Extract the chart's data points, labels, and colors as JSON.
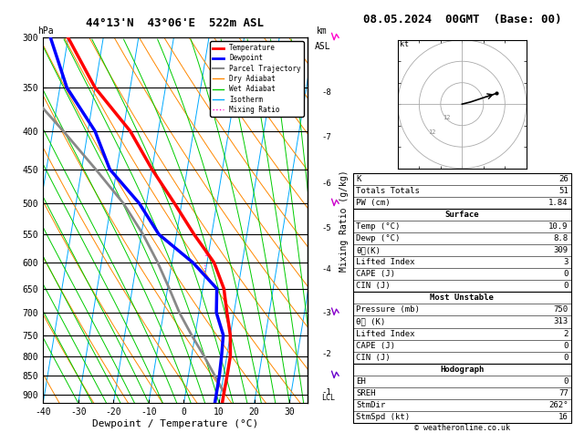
{
  "title_left": "44°13'N  43°06'E  522m ASL",
  "title_right": "08.05.2024  00GMT  (Base: 00)",
  "xlabel": "Dewpoint / Temperature (°C)",
  "ylabel_left": "hPa",
  "ylabel_mid": "Mixing Ratio (g/kg)",
  "copyright": "© weatheronline.co.uk",
  "pressure_levels": [
    300,
    350,
    400,
    450,
    500,
    550,
    600,
    650,
    700,
    750,
    800,
    850,
    900
  ],
  "km_labels": [
    8,
    7,
    6,
    5,
    4,
    3,
    2,
    1
  ],
  "km_pressures": [
    355,
    408,
    470,
    540,
    613,
    700,
    795,
    895
  ],
  "lcl_pressure": 895,
  "temp_profile": {
    "pressure": [
      925,
      900,
      850,
      800,
      750,
      700,
      650,
      600,
      550,
      500,
      450,
      400,
      350,
      300
    ],
    "temp": [
      10.9,
      10.9,
      11.0,
      11.0,
      10.0,
      8.0,
      6.0,
      2.0,
      -5.0,
      -12.0,
      -20.0,
      -28.0,
      -40.0,
      -50.0
    ]
  },
  "dewp_profile": {
    "pressure": [
      925,
      900,
      850,
      800,
      750,
      700,
      650,
      600,
      550,
      500,
      450,
      400,
      350,
      300
    ],
    "temp": [
      8.8,
      8.8,
      8.8,
      8.5,
      8.0,
      5.0,
      4.0,
      -4.0,
      -15.0,
      -22.0,
      -32.0,
      -38.0,
      -48.0,
      -55.0
    ]
  },
  "parcel_profile": {
    "pressure": [
      895,
      850,
      800,
      750,
      700,
      650,
      600,
      550,
      500,
      450,
      400,
      350,
      300
    ],
    "temp": [
      10.9,
      7.5,
      3.5,
      -1.0,
      -5.5,
      -9.5,
      -14.0,
      -19.5,
      -26.5,
      -36.0,
      -47.0,
      -60.0,
      -75.0
    ]
  },
  "sounding_info": {
    "K": 26,
    "TotTot": 51,
    "PW_cm": 1.84,
    "Surf_Temp": 10.9,
    "Surf_Dewp": 8.8,
    "Surf_ThetaE": 309,
    "LiftedIndex": 3,
    "CAPE": 0,
    "CIN": 0,
    "MU_Pressure": 750,
    "MU_ThetaE": 313,
    "MU_LI": 2,
    "MU_CAPE": 0,
    "MU_CIN": 0,
    "EH": 0,
    "SREH": 77,
    "StmDir": 262,
    "StmSpd": 16
  },
  "colors": {
    "temp": "#ff0000",
    "dewp": "#0000ff",
    "parcel": "#888888",
    "dry_adiabat": "#ff8800",
    "wet_adiabat": "#00cc00",
    "isotherm": "#00aaff",
    "mixing_ratio": "#ff00cc",
    "background": "#ffffff",
    "grid": "#000000"
  }
}
